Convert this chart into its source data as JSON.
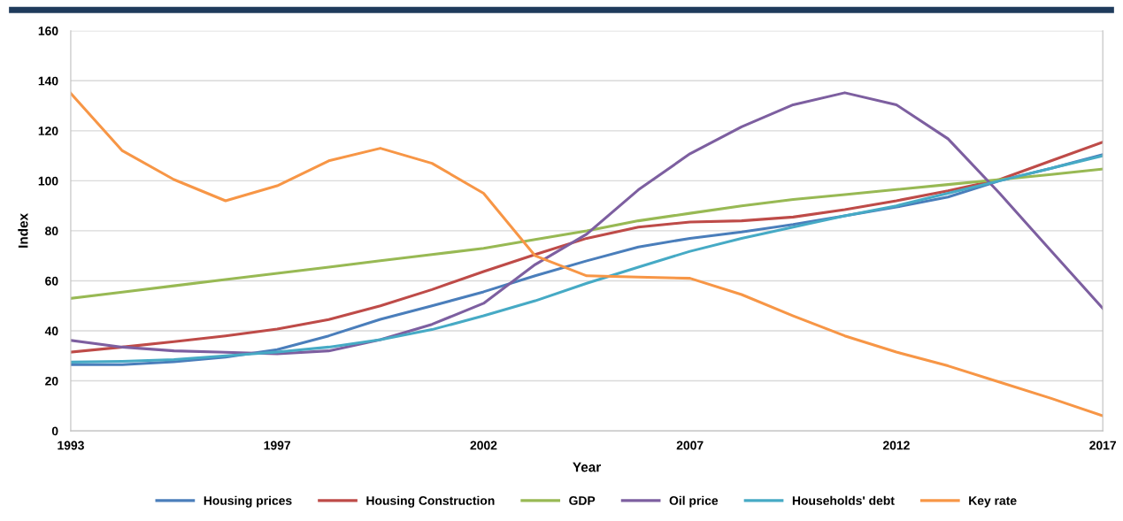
{
  "chart_data": {
    "type": "line",
    "xlabel": "Year",
    "ylabel": "Index",
    "categories": [
      "1993",
      null,
      null,
      null,
      "1997",
      null,
      null,
      null,
      "2002",
      null,
      null,
      null,
      "2007",
      null,
      null,
      null,
      "2012",
      null,
      null,
      null,
      "2017"
    ],
    "ylim": [
      0,
      160
    ],
    "yticks": [
      0,
      20,
      40,
      60,
      80,
      100,
      120,
      140,
      160
    ],
    "grid": "y",
    "legend": "bottom",
    "marker": "none",
    "line_style": "solid",
    "series": [
      {
        "name": "Housing prices",
        "color": "#4a7ebb",
        "values": [
          26.5,
          26.5,
          27.6,
          29.5,
          32.5,
          38,
          44.6,
          50,
          55.6,
          62,
          68,
          73.5,
          77,
          79.5,
          82.5,
          86,
          89.5,
          93.5,
          100,
          105,
          110.5
        ]
      },
      {
        "name": "Housing Construction",
        "color": "#be4b48",
        "values": [
          31.5,
          33.5,
          35.7,
          38,
          40.7,
          44.5,
          50,
          56.5,
          63.7,
          70.5,
          77,
          81.5,
          83.5,
          84,
          85.5,
          88.5,
          92,
          96,
          100.5,
          108,
          115.5
        ]
      },
      {
        "name": "GDP",
        "color": "#98b954",
        "values": [
          53,
          55.5,
          58,
          60.5,
          63,
          65.5,
          68,
          70.5,
          73,
          76.5,
          80,
          84,
          87,
          90,
          92.5,
          94.5,
          96.5,
          98.5,
          100.5,
          102.5,
          104.7
        ]
      },
      {
        "name": "Oil price",
        "color": "#7d5fa0",
        "values": [
          36.2,
          33.5,
          32,
          31.4,
          30.8,
          32,
          36.5,
          42.6,
          51,
          66.5,
          78.7,
          96.4,
          110.8,
          121.6,
          130.4,
          135.2,
          130.4,
          116.8,
          95,
          71.9,
          49
        ]
      },
      {
        "name": "Households' debt",
        "color": "#46aac5",
        "values": [
          27.5,
          27.8,
          28.5,
          30,
          31.5,
          33.5,
          36.5,
          40.5,
          46,
          52,
          59,
          65.5,
          71.8,
          77,
          81.5,
          86,
          90,
          95,
          100,
          105,
          110
        ]
      },
      {
        "name": "Key rate",
        "color": "#f79646",
        "values": [
          135,
          112,
          100.5,
          92,
          98,
          108,
          113,
          107,
          95,
          70,
          62,
          61.5,
          61,
          54.5,
          46,
          38,
          31.5,
          26,
          19.5,
          13,
          6
        ]
      }
    ]
  }
}
